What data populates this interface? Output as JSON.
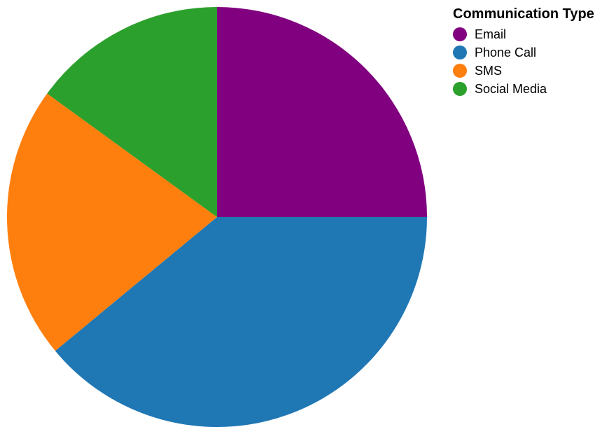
{
  "chart_data": {
    "type": "pie",
    "legend_title": "Communication Type",
    "legend_position": "top-right",
    "slices": [
      {
        "label": "Email",
        "value": 25,
        "color": "#800080"
      },
      {
        "label": "Phone Call",
        "value": 39,
        "color": "#1f77b4"
      },
      {
        "label": "SMS",
        "value": 21,
        "color": "#ff7f0e"
      },
      {
        "label": "Social Media",
        "value": 15,
        "color": "#2ca02c"
      }
    ]
  }
}
